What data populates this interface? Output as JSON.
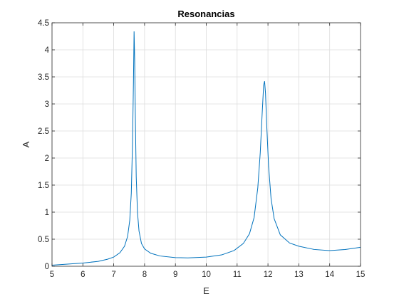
{
  "chart_data": {
    "type": "line",
    "title": "Resonancias",
    "xlabel": "E",
    "ylabel": "A",
    "xlim": [
      5,
      15
    ],
    "ylim": [
      0,
      4.5
    ],
    "grid": true,
    "x_ticks": [
      5,
      6,
      7,
      8,
      9,
      10,
      11,
      12,
      13,
      14,
      15
    ],
    "x_tick_labels": [
      "5",
      "6",
      "7",
      "8",
      "9",
      "10",
      "11",
      "12",
      "13",
      "14",
      "15"
    ],
    "y_ticks": [
      0,
      0.5,
      1,
      1.5,
      2,
      2.5,
      3,
      3.5,
      4,
      4.5
    ],
    "y_tick_labels": [
      "0",
      "0.5",
      "1",
      "1.5",
      "2",
      "2.5",
      "3",
      "3.5",
      "4",
      "4.5"
    ],
    "series": [
      {
        "color": "#0072BD",
        "x": [
          5.0,
          5.5,
          6.0,
          6.5,
          6.8,
          7.0,
          7.2,
          7.35,
          7.45,
          7.52,
          7.57,
          7.61,
          7.64,
          7.66,
          7.68,
          7.7,
          7.73,
          7.77,
          7.82,
          7.9,
          8.0,
          8.2,
          8.5,
          9.0,
          9.4,
          10.0,
          10.5,
          10.9,
          11.2,
          11.4,
          11.55,
          11.67,
          11.75,
          11.81,
          11.86,
          11.89,
          11.92,
          11.96,
          12.02,
          12.1,
          12.2,
          12.4,
          12.7,
          13.0,
          13.5,
          14.0,
          14.5,
          15.0
        ],
        "y": [
          0.02,
          0.04,
          0.06,
          0.09,
          0.13,
          0.17,
          0.25,
          0.37,
          0.55,
          0.85,
          1.35,
          2.3,
          3.4,
          4.34,
          3.8,
          2.8,
          1.65,
          1.0,
          0.65,
          0.42,
          0.32,
          0.24,
          0.19,
          0.16,
          0.155,
          0.17,
          0.21,
          0.29,
          0.42,
          0.6,
          0.9,
          1.45,
          2.1,
          2.8,
          3.35,
          3.42,
          3.2,
          2.6,
          1.85,
          1.25,
          0.88,
          0.58,
          0.43,
          0.37,
          0.31,
          0.29,
          0.31,
          0.35
        ]
      }
    ]
  }
}
